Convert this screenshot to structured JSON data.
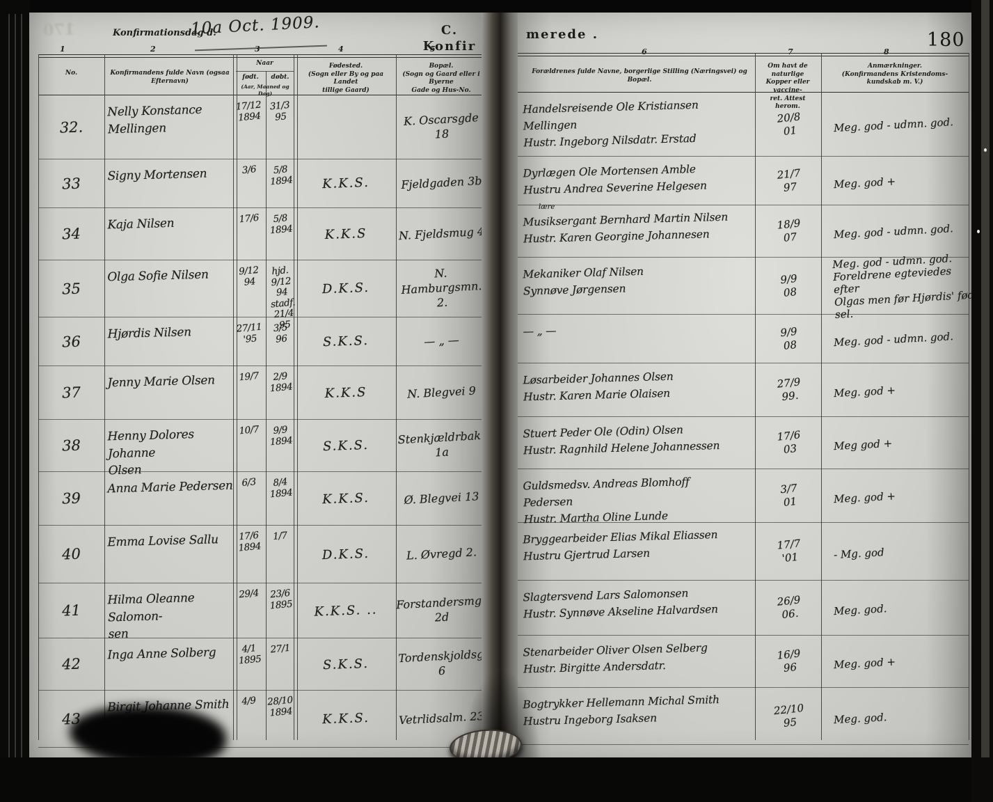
{
  "document": {
    "ghost_number": "170",
    "page_number": "180",
    "title_printed": "Konfirmationsdag d.",
    "title_handwritten": "10a Oct. 1909.",
    "section_left": "C. Konfir",
    "section_right": "merede .",
    "column_numbers": [
      "1",
      "2",
      "3",
      "4",
      "5",
      "6",
      "7",
      "8"
    ],
    "headers": {
      "no": "No.",
      "name": "Konfirmandens fulde Navn (ogsaa Efternavn)",
      "naar": "Naar",
      "born": "født.",
      "baptized": "døbt.",
      "naar_sub": "(Aar, Maaned og Dag)",
      "birthplace": "Fødested.\n(Sogn eller By og paa Landet\ntillige Gaard)",
      "residence": "Bopæl.\n(Sogn og Gaard eller i Byerne\nGade og Hus-No.",
      "parents": "Forældrenes fulde Navne, borgerlige Stilling (Næringsvei) og Bopæl.",
      "vaccinated": "Om havt de naturlige\nKopper eller vaccine-\nret.  Attest herom.",
      "remarks": "Anmærkninger.\n(Konfirmandens Kristendoms-\nkundskab m. V.)"
    }
  },
  "rows": [
    {
      "no": "32.",
      "name": "Nelly Konstance\n        Mellingen",
      "born": "17/12\n1894",
      "baptized": "31/3\n95",
      "birthplace": "",
      "residence": "K. Oscarsgde 18",
      "parents": "Handelsreisende Ole Kristiansen\n                    Mellingen\nHustr. Ingeborg Nilsdatr. Erstad",
      "parents_note": "",
      "vaccinated": "20/8\n01",
      "remarks": "Meg. god - udmn. god."
    },
    {
      "no": "33",
      "name": "Signy Mortensen",
      "born": "3/6",
      "baptized": "5/8\n1894",
      "birthplace": "K.K.S.",
      "residence": "Fjeldgaden 3b",
      "parents": "Dyrlægen Ole Mortensen Amble\nHustru Andrea Severine Helgesen",
      "parents_note": "",
      "vaccinated": "21/7\n97",
      "remarks": "Meg. god +"
    },
    {
      "no": "34",
      "name": "Kaja Nilsen",
      "born": "17/6",
      "baptized": "5/8\n1894",
      "birthplace": "K.K.S",
      "residence": "N. Fjeldsmug 4",
      "parents": "Musiksergant Bernhard Martin Nilsen\nHustr. Karen Georgine Johannesen",
      "parents_note": "lære",
      "vaccinated": "18/9\n07",
      "remarks": "Meg. god - udmn. god."
    },
    {
      "no": "35",
      "name": "Olga Sofie Nilsen",
      "born": "9/12\n94",
      "baptized": "hjd. 9/12\n94\nstadf.\n21/4 95",
      "birthplace": "D.K.S.",
      "residence": "N. Hamburgsmn.\n2.",
      "parents": "Mekaniker Olaf Nilsen\nSynnøve Jørgensen",
      "parents_note": "",
      "vaccinated": "9/9\n08",
      "remarks": "Meg. god - udmn. god.\nForeldrene egteviedes efter\nOlgas men før Hjørdis' fød-\nsel."
    },
    {
      "no": "36",
      "name": "Hjørdis Nilsen",
      "born": "27/11\n'95",
      "baptized": "3/5\n96",
      "birthplace": "S.K.S.",
      "residence": "—  „  —",
      "parents": "—   „ —",
      "parents_note": "",
      "vaccinated": "9/9\n08",
      "remarks": "Meg. god - udmn. god."
    },
    {
      "no": "37",
      "name": "Jenny Marie Olsen",
      "born": "19/7",
      "baptized": "2/9\n1894",
      "birthplace": "K.K.S",
      "residence": "N. Blegvei 9",
      "parents": "Løsarbeider Johannes Olsen\nHustr. Karen Marie Olaisen",
      "parents_note": "",
      "vaccinated": "27/9\n99.",
      "remarks": "Meg. god +"
    },
    {
      "no": "38",
      "name": "Henny Dolores Johanne\n            Olsen",
      "born": "10/7",
      "baptized": "9/9\n1894",
      "birthplace": "S.K.S.",
      "residence": "Stenkjældrbak. 1a",
      "parents": "Stuert Peder Ole (Odin) Olsen\nHustr. Ragnhild Helene Johannessen",
      "parents_note": "",
      "vaccinated": "17/6\n03",
      "remarks": "Meg god +"
    },
    {
      "no": "39",
      "name": "Anna Marie Pedersen",
      "born": "6/3",
      "baptized": "8/4\n1894",
      "birthplace": "K.K.S.",
      "residence": "Ø. Blegvei 13",
      "parents": "Guldsmedsv. Andreas Blomhoff\n             Pedersen\nHustr. Martha Oline Lunde",
      "parents_note": "",
      "vaccinated": "3/7\n01",
      "remarks": "Meg. god +"
    },
    {
      "no": "40",
      "name": "Emma Lovise Sallu",
      "born": "17/6\n1894",
      "baptized": "1/7",
      "birthplace": "D.K.S.",
      "residence": "L. Øvregd 2.",
      "parents": "Bryggearbeider Elias Mikal Eliassen\nHustru Gjertrud Larsen",
      "parents_note": "",
      "vaccinated": "17/7\n'01",
      "remarks": "- Mg. god"
    },
    {
      "no": "41",
      "name": "Hilma Oleanne Salomon-\n        sen",
      "born": "29/4",
      "baptized": "23/6\n1895",
      "birthplace": "K.K.S. ..",
      "residence": "Forstandersmgt\n2d",
      "parents": "Slagtersvend Lars Salomonsen\nHustr. Synnøve Akseline Halvardsen",
      "parents_note": "",
      "vaccinated": "26/9\n06.",
      "remarks": "Meg. god."
    },
    {
      "no": "42",
      "name": "Inga Anne Solberg",
      "born": "4/1\n1895",
      "baptized": "27/1",
      "birthplace": "S.K.S.",
      "residence": "Tordenskjoldsg 6",
      "parents": "Stenarbeider Oliver Olsen Selberg\nHustr. Birgitte Andersdatr.",
      "parents_note": "",
      "vaccinated": "16/9\n96",
      "remarks": "Meg. god +"
    },
    {
      "no": "43",
      "name": "Birgit Johanne Smith",
      "born": "4/9",
      "baptized": "28/10\n1894",
      "birthplace": "K.K.S.",
      "residence": "Vetrlidsalm. 23",
      "parents": "Bogtrykker Hellemann Michal Smith\nHustru Ingeborg Isaksen",
      "parents_note": "",
      "vaccinated": "22/10\n95",
      "remarks": "Meg. god."
    }
  ]
}
